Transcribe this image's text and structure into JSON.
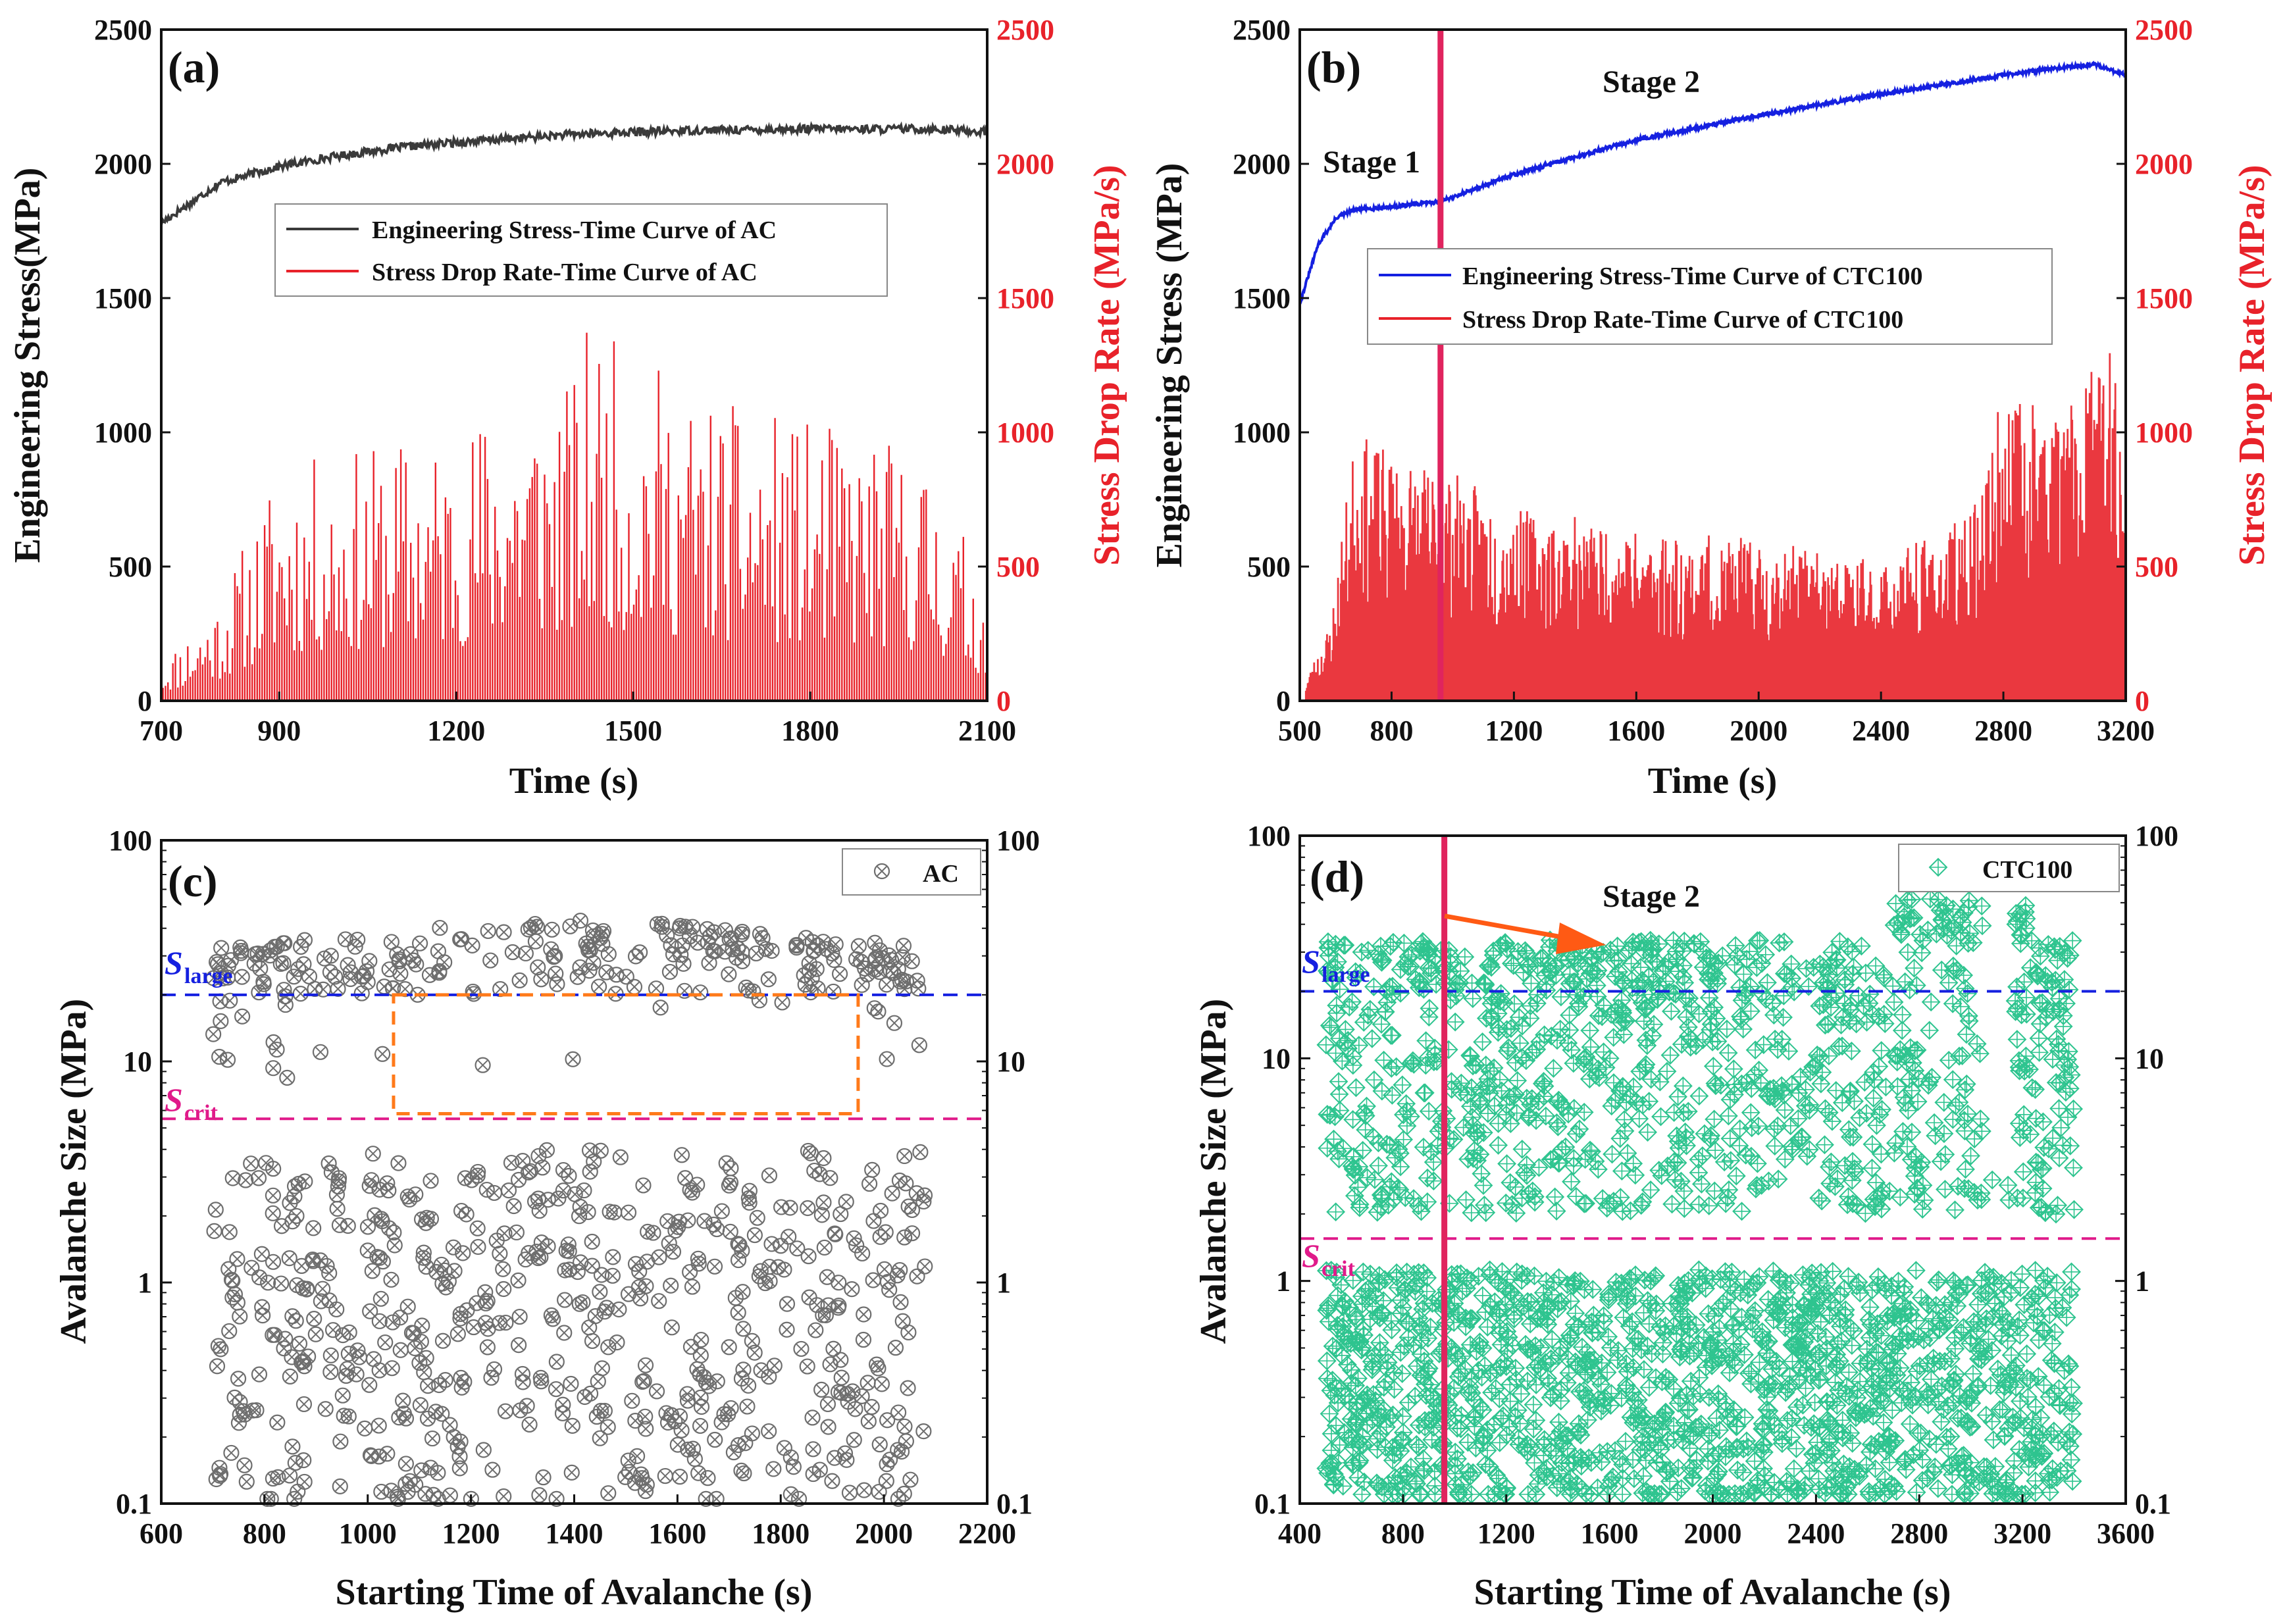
{
  "chart_data": [
    {
      "panel": "(a)",
      "type": "line",
      "xlabel": "Time (s)",
      "ylabel_left": "Engineering Stress(MPa)",
      "ylabel_right": "Stress Drop Rate (MPa/s)",
      "xlim": [
        700,
        2100
      ],
      "ylim": [
        0,
        2500
      ],
      "ylim_right": [
        0,
        2500
      ],
      "xticks": [
        700,
        900,
        1200,
        1500,
        1800,
        2100
      ],
      "yticks": [
        0,
        500,
        1000,
        1500,
        2000,
        2500
      ],
      "legend": [
        "Engineering Stress-Time Curve of AC",
        "Stress Drop Rate-Time Curve of AC"
      ],
      "series": [
        {
          "name": "Engineering Stress-Time Curve of AC",
          "color": "#3a3a3a",
          "x": [
            700,
            800,
            900,
            1000,
            1100,
            1200,
            1400,
            1600,
            1800,
            2000,
            2100
          ],
          "values": [
            1780,
            1930,
            1990,
            2030,
            2060,
            2080,
            2110,
            2125,
            2130,
            2130,
            2120
          ]
        },
        {
          "name": "Stress Drop Rate-Time Curve of AC",
          "color": "#e8222a",
          "style": "spikes",
          "x": [
            700,
            800,
            900,
            1000,
            1100,
            1200,
            1300,
            1400,
            1430,
            1500,
            1530,
            1600,
            1700,
            1800,
            1900,
            2000,
            2100
          ],
          "values": [
            150,
            400,
            880,
            920,
            980,
            1000,
            1200,
            1200,
            1460,
            1250,
            1280,
            1150,
            1080,
            1040,
            1000,
            900,
            450
          ]
        }
      ]
    },
    {
      "panel": "(b)",
      "type": "line",
      "xlabel": "Time (s)",
      "ylabel_left": "Engineering Stress (MPa)",
      "ylabel_right": "Stress Drop Rate (MPa/s)",
      "xlim": [
        500,
        3200
      ],
      "ylim": [
        0,
        2500
      ],
      "ylim_right": [
        0,
        2500
      ],
      "xticks": [
        500,
        800,
        1200,
        1600,
        2000,
        2400,
        2800,
        3200
      ],
      "yticks": [
        0,
        500,
        1000,
        1500,
        2000,
        2500
      ],
      "stage_boundary_x": 960,
      "annotations": [
        "Stage 1",
        "Stage 2"
      ],
      "legend": [
        "Engineering Stress-Time Curve of CTC100",
        "Stress Drop Rate-Time Curve of CTC100"
      ],
      "series": [
        {
          "name": "Engineering Stress-Time Curve of CTC100",
          "color": "#1520e0",
          "x": [
            500,
            560,
            620,
            680,
            800,
            960,
            1200,
            1600,
            2000,
            2400,
            2800,
            3000,
            3100,
            3200
          ],
          "values": [
            1480,
            1700,
            1800,
            1830,
            1840,
            1860,
            1960,
            2090,
            2180,
            2260,
            2330,
            2360,
            2370,
            2330
          ]
        },
        {
          "name": "Stress Drop Rate-Time Curve of CTC100",
          "color": "#e8222a",
          "style": "spikes",
          "x": [
            520,
            600,
            680,
            800,
            960,
            1200,
            1600,
            2000,
            2400,
            2700,
            2800,
            3000,
            3150,
            3200
          ],
          "values": [
            80,
            300,
            1000,
            920,
            880,
            720,
            650,
            600,
            520,
            700,
            1180,
            1100,
            1350,
            900
          ]
        }
      ]
    },
    {
      "panel": "(c)",
      "type": "scatter",
      "xlabel": "Starting Time of Avalanche (s)",
      "ylabel": "Avalanche Size (MPa)",
      "xlim": [
        600,
        2200
      ],
      "ylim": [
        0.1,
        100
      ],
      "yscale": "log",
      "xticks": [
        600,
        800,
        1000,
        1200,
        1400,
        1600,
        1800,
        2000,
        2200
      ],
      "yticks": [
        "0.1",
        "1",
        "10",
        "100"
      ],
      "legend": [
        "AC"
      ],
      "S_large": 20,
      "S_crit": 5.5,
      "threshold_labels": {
        "large_sym": "S",
        "large_sub": "large",
        "crit_sym": "S",
        "crit_sub": "crit"
      },
      "highlight_box": {
        "x": [
          1050,
          1950
        ],
        "y": [
          5.8,
          20
        ]
      },
      "series": [
        {
          "name": "AC",
          "color": "#6e6e6e",
          "x_range": [
            700,
            2080
          ],
          "y_range": [
            0.1,
            55
          ],
          "marker": "circle-x",
          "n_points": 900
        }
      ]
    },
    {
      "panel": "(d)",
      "type": "scatter",
      "xlabel": "Starting Time of Avalanche (s)",
      "ylabel": "Avalanche Size (MPa)",
      "xlim": [
        400,
        3600
      ],
      "ylim": [
        0.1,
        100
      ],
      "yscale": "log",
      "xticks": [
        400,
        800,
        1200,
        1600,
        2000,
        2400,
        2800,
        3200,
        3600
      ],
      "yticks": [
        "0.1",
        "1",
        "10",
        "100"
      ],
      "legend": [
        "CTC100"
      ],
      "stage_boundary_x": 960,
      "annotation": "Stage 2",
      "S_large": 20,
      "S_crit": 1.55,
      "threshold_labels": {
        "large_sym": "S",
        "large_sub": "large",
        "crit_sym": "S",
        "crit_sub": "crit"
      },
      "series": [
        {
          "name": "CTC100",
          "color": "#2ec48f",
          "x_range": [
            500,
            3400
          ],
          "y_range": [
            0.1,
            55
          ],
          "marker": "diamond-plus",
          "n_points": 2600
        }
      ]
    }
  ],
  "colors": {
    "red": "#e8222a",
    "blue": "#1520e0",
    "dark": "#3a3a3a",
    "green": "#2ec48f",
    "grey": "#6e6e6e",
    "magenta": "#e01a8a",
    "orange": "#ff7a1a",
    "stageline": "#e0245e"
  }
}
